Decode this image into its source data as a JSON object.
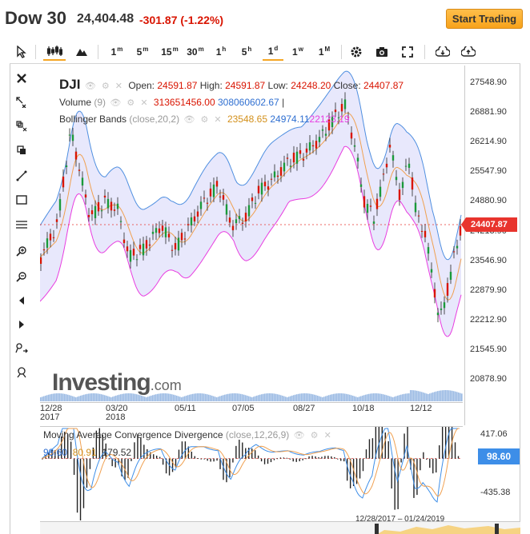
{
  "header": {
    "name": "Dow 30",
    "price": "24,404.48",
    "change": "-301.87 (-1.22%)",
    "start_trading": "Start Trading"
  },
  "toolbar": {
    "intervals": [
      {
        "label": "1",
        "sup": "m"
      },
      {
        "label": "5",
        "sup": "m"
      },
      {
        "label": "15",
        "sup": "m"
      },
      {
        "label": "30",
        "sup": "m"
      },
      {
        "label": "1",
        "sup": "h"
      },
      {
        "label": "5",
        "sup": "h"
      },
      {
        "label": "1",
        "sup": "d"
      },
      {
        "label": "1",
        "sup": "w"
      },
      {
        "label": "1",
        "sup": "M"
      }
    ],
    "active_interval": "1d"
  },
  "legend": {
    "symbol": "DJI",
    "open_label": "Open:",
    "open": "24591.87",
    "high_label": "High:",
    "high": "24591.87",
    "low_label": "Low:",
    "low": "24248.20",
    "close_label": "Close:",
    "close": "24407.87",
    "volume_label": "Volume",
    "volume_param": "(9)",
    "volume_v1": "313651456.00",
    "volume_v2": "308060602.67",
    "volume_sep": "|",
    "bb_label": "Bollinger Bands",
    "bb_param": "(close,20,2)",
    "bb_v1": "23548.65",
    "bb_v2": "24974.11",
    "bb_v3": "22123.19"
  },
  "y_axis": [
    "27548.90",
    "26881.90",
    "26214.90",
    "25547.90",
    "24880.90",
    "24213.90",
    "23546.90",
    "22879.90",
    "22212.90",
    "21545.90",
    "20878.90"
  ],
  "price_tag": "24407.87",
  "x_axis": [
    {
      "l1": "12/28",
      "l2": "2017"
    },
    {
      "l1": "03/20",
      "l2": "2018"
    },
    {
      "l1": "05/11",
      "l2": ""
    },
    {
      "l1": "07/05",
      "l2": ""
    },
    {
      "l1": "08/27",
      "l2": ""
    },
    {
      "l1": "10/18",
      "l2": ""
    },
    {
      "l1": "12/12",
      "l2": ""
    }
  ],
  "watermark": {
    "main": "Investing",
    "suffix": ".com"
  },
  "macd": {
    "title": "Moving Average Convergence Divergence",
    "param": "(close,12,26,9)",
    "v1": "98.60",
    "v2": "80.91",
    "v3": "179.52",
    "tag": "98.60",
    "y_top": "417.06",
    "y_bottom": "-435.38"
  },
  "navigator": {
    "range": "12/28/2017 – 01/24/2019"
  },
  "colors": {
    "up": "#1a9a3a",
    "down": "#d91400",
    "band_fill": "#e4e4fb",
    "upper_band": "#4f8fe0",
    "lower_band": "#e83de0",
    "middle_band": "#f0a050",
    "accent": "#f5a623"
  }
}
